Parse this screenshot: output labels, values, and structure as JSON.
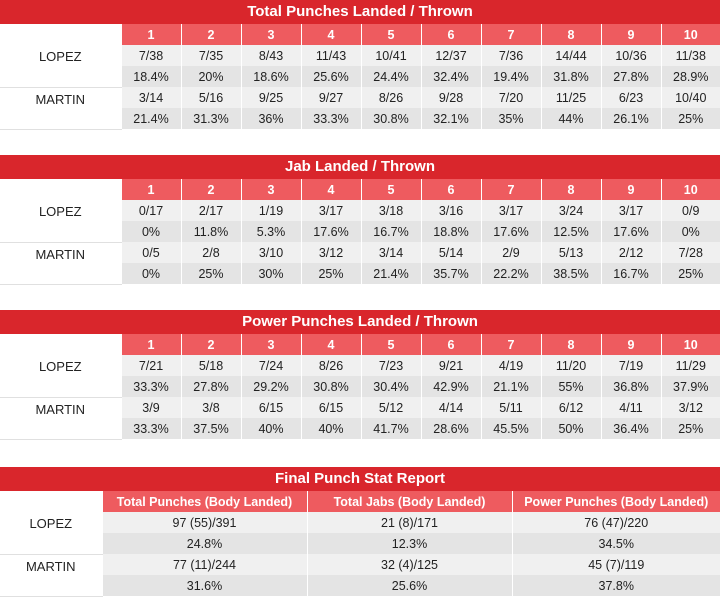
{
  "rounds": [
    "1",
    "2",
    "3",
    "4",
    "5",
    "6",
    "7",
    "8",
    "9",
    "10"
  ],
  "tables": [
    {
      "title": "Total Punches Landed / Thrown",
      "fighters": [
        {
          "name": "LOPEZ",
          "landed": [
            "7/38",
            "7/35",
            "8/43",
            "11/43",
            "10/41",
            "12/37",
            "7/36",
            "14/44",
            "10/36",
            "11/38"
          ],
          "pct": [
            "18.4%",
            "20%",
            "18.6%",
            "25.6%",
            "24.4%",
            "32.4%",
            "19.4%",
            "31.8%",
            "27.8%",
            "28.9%"
          ]
        },
        {
          "name": "MARTIN",
          "landed": [
            "3/14",
            "5/16",
            "9/25",
            "9/27",
            "8/26",
            "9/28",
            "7/20",
            "11/25",
            "6/23",
            "10/40"
          ],
          "pct": [
            "21.4%",
            "31.3%",
            "36%",
            "33.3%",
            "30.8%",
            "32.1%",
            "35%",
            "44%",
            "26.1%",
            "25%"
          ]
        }
      ]
    },
    {
      "title": "Jab Landed / Thrown",
      "fighters": [
        {
          "name": "LOPEZ",
          "landed": [
            "0/17",
            "2/17",
            "1/19",
            "3/17",
            "3/18",
            "3/16",
            "3/17",
            "3/24",
            "3/17",
            "0/9"
          ],
          "pct": [
            "0%",
            "11.8%",
            "5.3%",
            "17.6%",
            "16.7%",
            "18.8%",
            "17.6%",
            "12.5%",
            "17.6%",
            "0%"
          ]
        },
        {
          "name": "MARTIN",
          "landed": [
            "0/5",
            "2/8",
            "3/10",
            "3/12",
            "3/14",
            "5/14",
            "2/9",
            "5/13",
            "2/12",
            "7/28"
          ],
          "pct": [
            "0%",
            "25%",
            "30%",
            "25%",
            "21.4%",
            "35.7%",
            "22.2%",
            "38.5%",
            "16.7%",
            "25%"
          ]
        }
      ]
    },
    {
      "title": "Power Punches Landed / Thrown",
      "fighters": [
        {
          "name": "LOPEZ",
          "landed": [
            "7/21",
            "5/18",
            "7/24",
            "8/26",
            "7/23",
            "9/21",
            "4/19",
            "11/20",
            "7/19",
            "11/29"
          ],
          "pct": [
            "33.3%",
            "27.8%",
            "29.2%",
            "30.8%",
            "30.4%",
            "42.9%",
            "21.1%",
            "55%",
            "36.8%",
            "37.9%"
          ]
        },
        {
          "name": "MARTIN",
          "landed": [
            "3/9",
            "3/8",
            "6/15",
            "6/15",
            "5/12",
            "4/14",
            "5/11",
            "6/12",
            "4/11",
            "3/12"
          ],
          "pct": [
            "33.3%",
            "37.5%",
            "40%",
            "40%",
            "41.7%",
            "28.6%",
            "45.5%",
            "50%",
            "36.4%",
            "25%"
          ]
        }
      ]
    }
  ],
  "final": {
    "title": "Final Punch Stat Report",
    "columns": [
      "Total Punches (Body Landed)",
      "Total Jabs (Body Landed)",
      "Power Punches (Body Landed)"
    ],
    "fighters": [
      {
        "name": "LOPEZ",
        "values": [
          "97 (55)/391",
          "21 (8)/171",
          "76 (47)/220"
        ],
        "pct": [
          "24.8%",
          "12.3%",
          "34.5%"
        ]
      },
      {
        "name": "MARTIN",
        "values": [
          "77 (11)/244",
          "32 (4)/125",
          "45 (7)/119"
        ],
        "pct": [
          "31.6%",
          "25.6%",
          "37.8%"
        ]
      }
    ]
  },
  "colors": {
    "title_bg": "#d9262c",
    "header_bg": "#ee5b5f",
    "row_light": "#f0f0f0",
    "row_dark": "#e4e4e4"
  }
}
